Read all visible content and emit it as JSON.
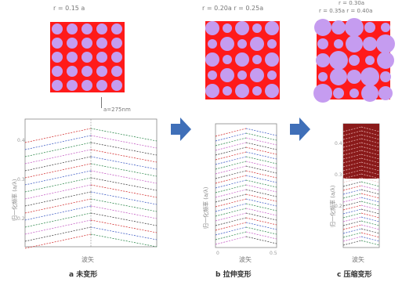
{
  "panels": [
    {
      "top_label": "r = 0.15 a",
      "dim_label": "a=275nm",
      "x_label": "波矢",
      "y_label": "归一化频率 (a/λ)",
      "caption": "a 未变形",
      "y_ticks": [
        "0.4",
        "0.3",
        "0.2"
      ]
    },
    {
      "top_label": "r = 0.20a   r = 0.25a",
      "x_label": "波矢",
      "y_label": "归一化频率 (a/λ)",
      "caption": "b 拉伸变形",
      "x_ticks": [
        "0",
        "0.5"
      ]
    },
    {
      "top_label_line1": "r = 0.30a",
      "top_label_line2": "r = 0.35a   r = 0.40a",
      "x_label": "波矢",
      "y_label": "归一化频率 (a/λ)",
      "caption": "c 压缩变形",
      "y_ticks": [
        "0.4",
        "0.3",
        "0.2"
      ]
    }
  ],
  "colors": {
    "lattice_bg": "#ff1a1a",
    "hole": "#c59cf0",
    "arrow": "#3f6fb8"
  },
  "icons": [
    "arrow-right-icon",
    "arrow-right-icon"
  ]
}
